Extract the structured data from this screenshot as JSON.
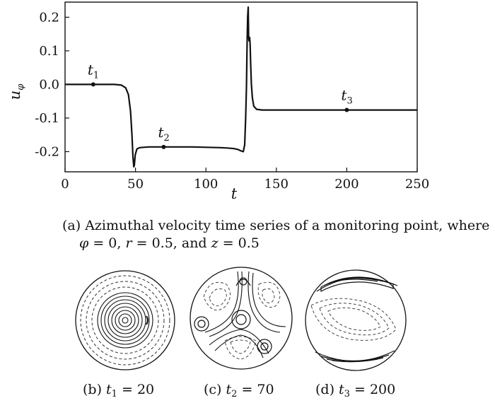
{
  "chart_data": [
    {
      "type": "line",
      "xlabel": "t",
      "ylabel": "u",
      "ylabel_subscript": "φ",
      "xlim": [
        0,
        250
      ],
      "ylim": [
        -0.26,
        0.245
      ],
      "xticks": [
        0,
        50,
        100,
        150,
        200,
        250
      ],
      "xtick_labels": [
        "0",
        "50",
        "100",
        "150",
        "200",
        "250"
      ],
      "yticks": [
        -0.2,
        -0.1,
        0.0,
        0.1,
        0.2
      ],
      "ytick_labels": [
        "-0.2",
        "-0.1",
        "0.0",
        "0.1",
        "0.2"
      ],
      "grid": false,
      "series": [
        {
          "x": [
            0,
            20,
            35,
            40,
            43,
            45,
            46.5,
            47.5,
            48.2,
            48.8,
            49.2,
            49.8,
            51,
            53,
            56,
            60,
            70,
            80,
            90,
            100,
            110,
            115,
            120,
            123,
            125,
            126.5,
            127.5,
            128.2,
            128.8,
            129.2,
            129.6,
            130,
            130.3,
            130.6,
            131,
            131.4,
            131.8,
            132.3,
            133,
            134,
            136,
            140,
            150,
            200,
            250
          ],
          "y": [
            0,
            0,
            0,
            -0.002,
            -0.01,
            -0.03,
            -0.08,
            -0.15,
            -0.215,
            -0.245,
            -0.24,
            -0.21,
            -0.192,
            -0.188,
            -0.187,
            -0.186,
            -0.186,
            -0.186,
            -0.186,
            -0.187,
            -0.188,
            -0.189,
            -0.191,
            -0.194,
            -0.198,
            -0.2,
            -0.18,
            -0.1,
            0.0,
            0.12,
            0.2,
            0.23,
            0.14,
            0.13,
            0.14,
            0.12,
            0.06,
            0.0,
            -0.04,
            -0.065,
            -0.074,
            -0.076,
            -0.076,
            -0.076,
            -0.076
          ]
        }
      ],
      "markers": [
        {
          "x": 20,
          "y": 0.0,
          "label": "t",
          "sub": "1"
        },
        {
          "x": 70,
          "y": -0.186,
          "label": "t",
          "sub": "2"
        },
        {
          "x": 200,
          "y": -0.076,
          "label": "t",
          "sub": "3"
        }
      ]
    }
  ],
  "captions": {
    "a_line1": "(a) Azimuthal velocity time series of a monitoring point, where",
    "a_line2_phi": "φ",
    "a_line2_eq1": " = 0, ",
    "a_line2_r": "r",
    "a_line2_eq2": " = 0.5, and ",
    "a_line2_z": "z",
    "a_line2_eq3": " = 0.5",
    "b_prefix": "(b) ",
    "b_t": "t",
    "b_sub": "1",
    "b_val": " = 20",
    "c_prefix": "(c) ",
    "c_t": "t",
    "c_sub": "2",
    "c_val": " = 70",
    "d_prefix": "(d) ",
    "d_t": "t",
    "d_sub": "3",
    "d_val": " = 200"
  }
}
